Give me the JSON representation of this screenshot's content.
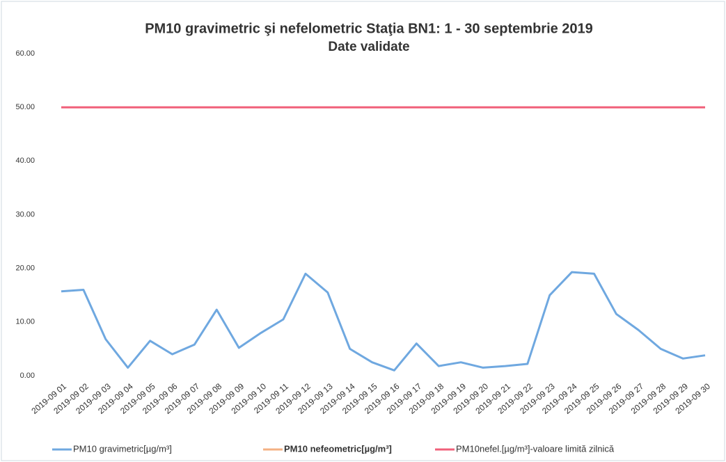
{
  "chart_data": {
    "type": "line",
    "title": "PM10 gravimetric şi nefelometric Staţia BN1: 1 - 30 septembrie 2019",
    "subtitle": "Date validate",
    "categories": [
      "2019-09 01",
      "2019-09 02",
      "2019-09 03",
      "2019-09 04",
      "2019-09 05",
      "2019-09 06",
      "2019-09 07",
      "2019-09 08",
      "2019-09 09",
      "2019-09 10",
      "2019-09 11",
      "2019-09 12",
      "2019-09 13",
      "2019-09 14",
      "2019-09 15",
      "2019-09 16",
      "2019-09 17",
      "2019-09 18",
      "2019-09 19",
      "2019-09 20",
      "2019-09 21",
      "2019-09 22",
      "2019-09 23",
      "2019-09 24",
      "2019-09 25",
      "2019-09 26",
      "2019-09 27",
      "2019-09 28",
      "2019-09 29",
      "2019-09 30"
    ],
    "series": [
      {
        "name": "PM10 gravimetric[µg/m³]",
        "color": "#6fa8e0",
        "values": [
          15.7,
          16.0,
          6.8,
          1.5,
          6.5,
          4.0,
          5.8,
          12.3,
          5.2,
          8.0,
          10.5,
          19.0,
          15.5,
          5.0,
          2.5,
          1.0,
          6.0,
          1.8,
          2.5,
          1.5,
          1.8,
          2.2,
          15.0,
          19.3,
          19.0,
          11.5,
          8.5,
          5.0,
          3.2,
          3.8
        ]
      },
      {
        "name": "PM10 nefeometric[µg/m³]",
        "color": "#f4b183",
        "values": [
          null,
          null,
          null,
          null,
          null,
          null,
          null,
          null,
          null,
          null,
          null,
          null,
          null,
          null,
          null,
          null,
          null,
          null,
          null,
          null,
          null,
          null,
          null,
          null,
          null,
          null,
          null,
          null,
          null,
          null
        ]
      },
      {
        "name": "PM10nefel.[µg/m³]-valoare limită zilnică",
        "color": "#f0607a",
        "values": [
          50,
          50,
          50,
          50,
          50,
          50,
          50,
          50,
          50,
          50,
          50,
          50,
          50,
          50,
          50,
          50,
          50,
          50,
          50,
          50,
          50,
          50,
          50,
          50,
          50,
          50,
          50,
          50,
          50,
          50
        ]
      }
    ],
    "ylim": [
      0,
      60
    ],
    "yticks": [
      {
        "value": 0,
        "label": "0.00"
      },
      {
        "value": 10,
        "label": "10.00"
      },
      {
        "value": 20,
        "label": "20.00"
      },
      {
        "value": 30,
        "label": "30.00"
      },
      {
        "value": 40,
        "label": "40.00"
      },
      {
        "value": 50,
        "label": "50.00"
      },
      {
        "value": 60,
        "label": "60.00"
      }
    ],
    "legend": "bottom"
  }
}
